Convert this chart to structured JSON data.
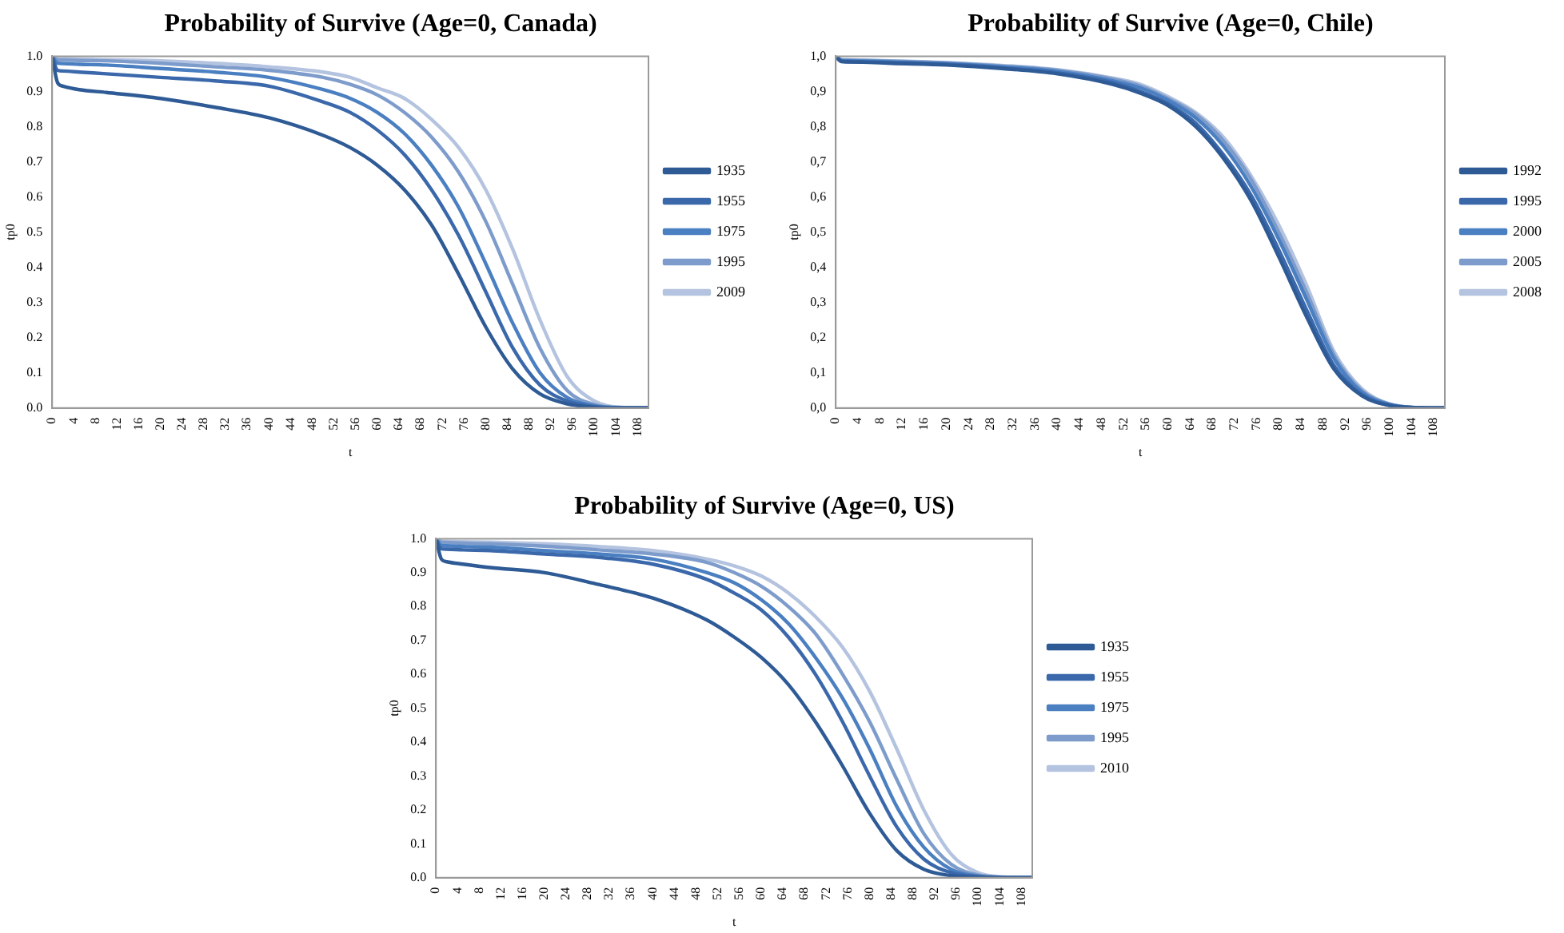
{
  "chart_data": [
    {
      "type": "line",
      "title": "Probability of Survive (Age=0, Canada)",
      "xlabel": "t",
      "ylabel": "tp0",
      "legend": "right",
      "marker": "none",
      "x": [
        0,
        1,
        2,
        5,
        10,
        20,
        30,
        40,
        50,
        55,
        60,
        65,
        70,
        75,
        80,
        85,
        90,
        95,
        100,
        105,
        110
      ],
      "xlim": [
        0,
        110
      ],
      "xticks": [
        0,
        4,
        8,
        12,
        16,
        20,
        24,
        28,
        32,
        36,
        40,
        44,
        48,
        52,
        56,
        60,
        64,
        68,
        72,
        76,
        80,
        84,
        88,
        92,
        96,
        100,
        104,
        108
      ],
      "ylim": [
        0,
        1
      ],
      "yticks": [
        {
          "value": 0,
          "label": "0.0"
        },
        {
          "value": 0.1,
          "label": "0.1"
        },
        {
          "value": 0.2,
          "label": "0.2"
        },
        {
          "value": 0.3,
          "label": "0.3"
        },
        {
          "value": 0.4,
          "label": "0.4"
        },
        {
          "value": 0.5,
          "label": "0.5"
        },
        {
          "value": 0.6,
          "label": "0.6"
        },
        {
          "value": 0.7,
          "label": "0.7"
        },
        {
          "value": 0.8,
          "label": "0.8"
        },
        {
          "value": 0.9,
          "label": "0.9"
        },
        {
          "value": 1,
          "label": "1.0"
        }
      ],
      "series": [
        {
          "name": "1935",
          "color": "#2e5a95",
          "values": [
            1,
            0.925,
            0.915,
            0.905,
            0.897,
            0.88,
            0.855,
            0.825,
            0.775,
            0.74,
            0.69,
            0.62,
            0.52,
            0.38,
            0.23,
            0.11,
            0.04,
            0.012,
            0.002,
            0,
            0
          ]
        },
        {
          "name": "1955",
          "color": "#3a68ab",
          "values": [
            1,
            0.96,
            0.958,
            0.955,
            0.95,
            0.94,
            0.93,
            0.915,
            0.87,
            0.84,
            0.79,
            0.72,
            0.62,
            0.49,
            0.33,
            0.17,
            0.065,
            0.02,
            0.004,
            0,
            0
          ]
        },
        {
          "name": "1975",
          "color": "#4a7fc1",
          "values": [
            1,
            0.98,
            0.979,
            0.977,
            0.975,
            0.965,
            0.955,
            0.94,
            0.905,
            0.88,
            0.84,
            0.78,
            0.69,
            0.57,
            0.41,
            0.24,
            0.1,
            0.03,
            0.006,
            0.001,
            0
          ]
        },
        {
          "name": "1995",
          "color": "#7d9ccb",
          "values": [
            1,
            0.99,
            0.989,
            0.988,
            0.987,
            0.98,
            0.97,
            0.96,
            0.94,
            0.92,
            0.89,
            0.84,
            0.77,
            0.67,
            0.53,
            0.35,
            0.17,
            0.05,
            0.01,
            0.001,
            0
          ]
        },
        {
          "name": "2009",
          "color": "#b4c3df",
          "values": [
            1,
            0.995,
            0.994,
            0.992,
            0.99,
            0.987,
            0.98,
            0.97,
            0.955,
            0.94,
            0.91,
            0.88,
            0.82,
            0.74,
            0.62,
            0.45,
            0.25,
            0.09,
            0.02,
            0.002,
            0
          ]
        }
      ]
    },
    {
      "type": "line",
      "title": "Probability of Survive (Age=0, Chile)",
      "xlabel": "t",
      "ylabel": "tp0",
      "legend": "right",
      "marker": "none",
      "x": [
        0,
        1,
        2,
        5,
        10,
        20,
        30,
        40,
        50,
        55,
        60,
        65,
        70,
        75,
        80,
        85,
        90,
        95,
        100,
        105,
        110
      ],
      "xlim": [
        0,
        110
      ],
      "xticks": [
        0,
        4,
        8,
        12,
        16,
        20,
        24,
        28,
        32,
        36,
        40,
        44,
        48,
        52,
        56,
        60,
        64,
        68,
        72,
        76,
        80,
        84,
        88,
        92,
        96,
        100,
        104,
        108
      ],
      "ylim": [
        0,
        1
      ],
      "yticks": [
        {
          "value": 0,
          "label": "0,0"
        },
        {
          "value": 0.1,
          "label": "0,1"
        },
        {
          "value": 0.2,
          "label": "0,2"
        },
        {
          "value": 0.3,
          "label": "0,3"
        },
        {
          "value": 0.4,
          "label": "0,4"
        },
        {
          "value": 0.5,
          "label": "0,5"
        },
        {
          "value": 0.6,
          "label": "0,6"
        },
        {
          "value": 0.7,
          "label": "0,7"
        },
        {
          "value": 0.8,
          "label": "0,8"
        },
        {
          "value": 0.9,
          "label": "0,9"
        },
        {
          "value": 1,
          "label": "1,0"
        }
      ],
      "series": [
        {
          "name": "1992",
          "color": "#2e5a95",
          "values": [
            1,
            0.985,
            0.984,
            0.983,
            0.98,
            0.975,
            0.965,
            0.95,
            0.92,
            0.895,
            0.86,
            0.8,
            0.71,
            0.59,
            0.43,
            0.26,
            0.11,
            0.035,
            0.007,
            0.001,
            0
          ]
        },
        {
          "name": "1995",
          "color": "#3a68ab",
          "values": [
            1,
            0.986,
            0.985,
            0.984,
            0.982,
            0.977,
            0.967,
            0.953,
            0.925,
            0.9,
            0.865,
            0.81,
            0.72,
            0.605,
            0.45,
            0.28,
            0.12,
            0.038,
            0.008,
            0.001,
            0
          ]
        },
        {
          "name": "2000",
          "color": "#4a7fc1",
          "values": [
            1,
            0.988,
            0.987,
            0.986,
            0.984,
            0.979,
            0.97,
            0.957,
            0.93,
            0.91,
            0.875,
            0.825,
            0.745,
            0.63,
            0.48,
            0.31,
            0.14,
            0.045,
            0.01,
            0.001,
            0
          ]
        },
        {
          "name": "2005",
          "color": "#7d9ccb",
          "values": [
            1,
            0.99,
            0.989,
            0.988,
            0.986,
            0.981,
            0.972,
            0.96,
            0.935,
            0.915,
            0.88,
            0.835,
            0.76,
            0.65,
            0.5,
            0.33,
            0.15,
            0.05,
            0.011,
            0.001,
            0
          ]
        },
        {
          "name": "2008",
          "color": "#b4c3df",
          "values": [
            1,
            0.991,
            0.99,
            0.989,
            0.987,
            0.982,
            0.974,
            0.962,
            0.938,
            0.92,
            0.885,
            0.84,
            0.77,
            0.66,
            0.52,
            0.35,
            0.16,
            0.055,
            0.012,
            0.001,
            0
          ]
        }
      ]
    },
    {
      "type": "line",
      "title": "Probability of Survive (Age=0, US)",
      "xlabel": "t",
      "ylabel": "tp0",
      "legend": "right",
      "marker": "none",
      "x": [
        0,
        1,
        2,
        5,
        10,
        20,
        30,
        40,
        50,
        55,
        60,
        65,
        70,
        75,
        80,
        85,
        90,
        95,
        100,
        105,
        110
      ],
      "xlim": [
        0,
        110
      ],
      "xticks": [
        0,
        4,
        8,
        12,
        16,
        20,
        24,
        28,
        32,
        36,
        40,
        44,
        48,
        52,
        56,
        60,
        64,
        68,
        72,
        76,
        80,
        84,
        88,
        92,
        96,
        100,
        104,
        108
      ],
      "ylim": [
        0,
        1
      ],
      "yticks": [
        {
          "value": 0,
          "label": "0.0"
        },
        {
          "value": 0.1,
          "label": "0.1"
        },
        {
          "value": 0.2,
          "label": "0.2"
        },
        {
          "value": 0.3,
          "label": "0.3"
        },
        {
          "value": 0.4,
          "label": "0.4"
        },
        {
          "value": 0.5,
          "label": "0.5"
        },
        {
          "value": 0.6,
          "label": "0.6"
        },
        {
          "value": 0.7,
          "label": "0.7"
        },
        {
          "value": 0.8,
          "label": "0.8"
        },
        {
          "value": 0.9,
          "label": "0.9"
        },
        {
          "value": 1,
          "label": "1.0"
        }
      ],
      "series": [
        {
          "name": "1935",
          "color": "#2e5a95",
          "values": [
            1,
            0.94,
            0.932,
            0.925,
            0.915,
            0.9,
            0.865,
            0.825,
            0.76,
            0.71,
            0.65,
            0.57,
            0.46,
            0.33,
            0.19,
            0.08,
            0.025,
            0.006,
            0.001,
            0,
            0
          ]
        },
        {
          "name": "1955",
          "color": "#3a68ab",
          "values": [
            1,
            0.97,
            0.969,
            0.967,
            0.965,
            0.955,
            0.945,
            0.925,
            0.88,
            0.84,
            0.79,
            0.71,
            0.6,
            0.46,
            0.3,
            0.15,
            0.055,
            0.015,
            0.003,
            0,
            0
          ]
        },
        {
          "name": "1975",
          "color": "#4a7fc1",
          "values": [
            1,
            0.98,
            0.979,
            0.977,
            0.975,
            0.965,
            0.955,
            0.94,
            0.9,
            0.87,
            0.82,
            0.75,
            0.65,
            0.53,
            0.38,
            0.21,
            0.09,
            0.025,
            0.005,
            0.001,
            0
          ]
        },
        {
          "name": "1995",
          "color": "#7d9ccb",
          "values": [
            1,
            0.99,
            0.989,
            0.987,
            0.985,
            0.978,
            0.967,
            0.955,
            0.93,
            0.9,
            0.86,
            0.8,
            0.72,
            0.6,
            0.46,
            0.29,
            0.13,
            0.04,
            0.008,
            0.001,
            0
          ]
        },
        {
          "name": "2010",
          "color": "#b4c3df",
          "values": [
            1,
            0.993,
            0.992,
            0.991,
            0.99,
            0.985,
            0.977,
            0.965,
            0.94,
            0.92,
            0.89,
            0.84,
            0.77,
            0.68,
            0.55,
            0.38,
            0.2,
            0.07,
            0.015,
            0.002,
            0
          ]
        }
      ]
    }
  ]
}
